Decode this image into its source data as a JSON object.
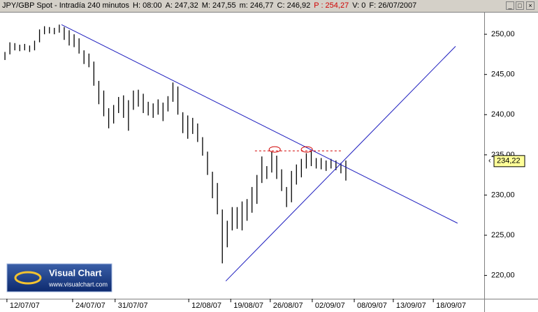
{
  "header": [
    {
      "text": "JPY/GBP Spot - Intradía 240 minutos",
      "color": "#000000"
    },
    {
      "text": "H: 08:00",
      "color": "#000000"
    },
    {
      "text": "A: 247,32",
      "color": "#000000"
    },
    {
      "text": "M: 247,55",
      "color": "#000000"
    },
    {
      "text": "m: 246,77",
      "color": "#000000"
    },
    {
      "text": "C: 246,92",
      "color": "#000000"
    },
    {
      "text": "P : 254,27",
      "color": "#d00000"
    },
    {
      "text": "V: 0",
      "color": "#000000"
    },
    {
      "text": "F: 26/07/2007",
      "color": "#000000"
    }
  ],
  "logo": {
    "title": "Visual Chart",
    "url": "www.visualchart.com"
  },
  "chart_data": {
    "type": "ohlc",
    "color": "#000000",
    "line_color": "#1f1fbf",
    "level_color": "#d00000",
    "xlim": [
      -1,
      97
    ],
    "ylim": [
      217.1,
      252.7
    ],
    "yticks": [
      {
        "value": 220,
        "label": "220,00"
      },
      {
        "value": 225,
        "label": "225,00"
      },
      {
        "value": 230,
        "label": "230,00"
      },
      {
        "value": 235,
        "label": "235,00"
      },
      {
        "value": 240,
        "label": "240,00"
      },
      {
        "value": 245,
        "label": "245,00"
      },
      {
        "value": 250,
        "label": "250,00"
      }
    ],
    "xticks": [
      {
        "value": 0.4,
        "label": "12/07/07"
      },
      {
        "value": 13.7,
        "label": "24/07/07"
      },
      {
        "value": 22.3,
        "label": "31/07/07"
      },
      {
        "value": 37.2,
        "label": "12/08/07"
      },
      {
        "value": 45.7,
        "label": "19/08/07"
      },
      {
        "value": 53.7,
        "label": "26/08/07"
      },
      {
        "value": 62.2,
        "label": "02/09/07"
      },
      {
        "value": 70.7,
        "label": "08/09/07"
      },
      {
        "value": 78.6,
        "label": "13/09/07"
      },
      {
        "value": 86.7,
        "label": "18/09/07"
      }
    ],
    "x": [
      0,
      1,
      2,
      3,
      4,
      5,
      6,
      7,
      8,
      9,
      10,
      11,
      12,
      13,
      14,
      15,
      16,
      17,
      18,
      19,
      20,
      21,
      22,
      23,
      24,
      25,
      26,
      27,
      28,
      29,
      30,
      31,
      32,
      33,
      34,
      35,
      36,
      37,
      38,
      39,
      40,
      41,
      42,
      43,
      44,
      45,
      46,
      47,
      48,
      49,
      50,
      51,
      52,
      53,
      54,
      55,
      56,
      57,
      58,
      59,
      60,
      61,
      62,
      63,
      64,
      65,
      66,
      67,
      68,
      69
    ],
    "high": [
      247.8,
      249.0,
      248.9,
      248.7,
      248.8,
      248.6,
      249.2,
      250.6,
      251.0,
      250.9,
      250.8,
      251.2,
      250.9,
      250.5,
      250.0,
      249.5,
      248.0,
      247.6,
      246.6,
      244.2,
      243.0,
      240.8,
      241.2,
      242.2,
      242.4,
      241.8,
      243.0,
      243.1,
      242.6,
      241.6,
      241.4,
      241.9,
      241.5,
      242.3,
      244.0,
      243.5,
      240.3,
      239.9,
      239.6,
      238.9,
      237.2,
      235.4,
      232.9,
      231.5,
      228.2,
      226.8,
      228.5,
      228.5,
      229.2,
      229.5,
      231.0,
      232.5,
      234.8,
      233.6,
      235.4,
      234.9,
      233.2,
      231.0,
      233.0,
      233.8,
      234.5,
      235.2,
      235.5,
      234.6,
      234.6,
      234.3,
      234.5,
      234.3,
      234.0,
      234.3
    ],
    "low": [
      246.8,
      247.5,
      248.0,
      247.9,
      248.0,
      247.8,
      248.0,
      249.0,
      250.0,
      250.1,
      250.0,
      250.2,
      249.3,
      248.6,
      248.4,
      247.6,
      246.3,
      245.9,
      243.6,
      241.3,
      239.8,
      238.3,
      238.9,
      240.2,
      239.6,
      238.0,
      240.6,
      241.0,
      240.2,
      239.9,
      239.6,
      240.0,
      239.2,
      240.4,
      241.6,
      240.0,
      237.7,
      237.0,
      237.6,
      236.6,
      234.9,
      232.5,
      229.6,
      227.6,
      221.5,
      223.5,
      225.6,
      225.8,
      225.6,
      226.8,
      227.8,
      228.9,
      231.5,
      232.0,
      232.8,
      232.0,
      230.5,
      228.5,
      229.1,
      231.3,
      232.2,
      233.3,
      233.6,
      233.3,
      233.2,
      233.0,
      233.3,
      233.1,
      232.7,
      231.8
    ],
    "trendlines": [
      {
        "x": [
          11.45,
          91.6
        ],
        "y": [
          251.2,
          226.5
        ]
      },
      {
        "x": [
          44.7,
          91.2
        ],
        "y": [
          219.3,
          248.5
        ]
      }
    ],
    "level": {
      "x": [
        50.6,
        68.3
      ],
      "y": 235.5
    },
    "highlights": [
      {
        "x": 54.6,
        "y": 235.5
      },
      {
        "x": 61.1,
        "y": 235.5
      }
    ],
    "last_price": {
      "value": 234.22,
      "label": "234,22"
    }
  }
}
